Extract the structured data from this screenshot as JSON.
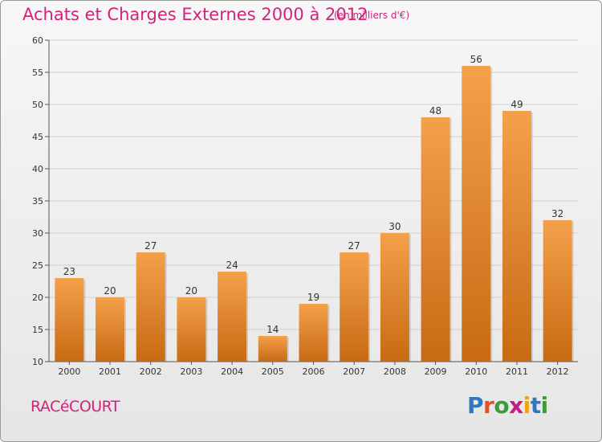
{
  "header": {
    "title": "Achats et Charges Externes 2000 à 2012",
    "subtitle": "(en milliers d'€)"
  },
  "footer": {
    "town": "RACéCOURT",
    "logo": {
      "letters": [
        "P",
        "r",
        "o",
        "x",
        "i",
        "t",
        "i"
      ],
      "colors": [
        "#2e78c2",
        "#e8502a",
        "#3f9b39",
        "#c21f7a",
        "#f0a312",
        "#2e78c2",
        "#3f9b39"
      ]
    }
  },
  "colors": {
    "bar_top": "#f5a04a",
    "bar_bottom": "#c86a14",
    "text": "#d0237a"
  },
  "chart_data": {
    "type": "bar",
    "categories": [
      "2000",
      "2001",
      "2002",
      "2003",
      "2004",
      "2005",
      "2006",
      "2007",
      "2008",
      "2009",
      "2010",
      "2011",
      "2012"
    ],
    "values": [
      23,
      20,
      27,
      20,
      24,
      14,
      19,
      27,
      30,
      48,
      56,
      49,
      32
    ],
    "ylim": [
      10,
      60
    ],
    "yticks": [
      10,
      15,
      20,
      25,
      30,
      35,
      40,
      45,
      50,
      55,
      60
    ],
    "grid": true
  }
}
